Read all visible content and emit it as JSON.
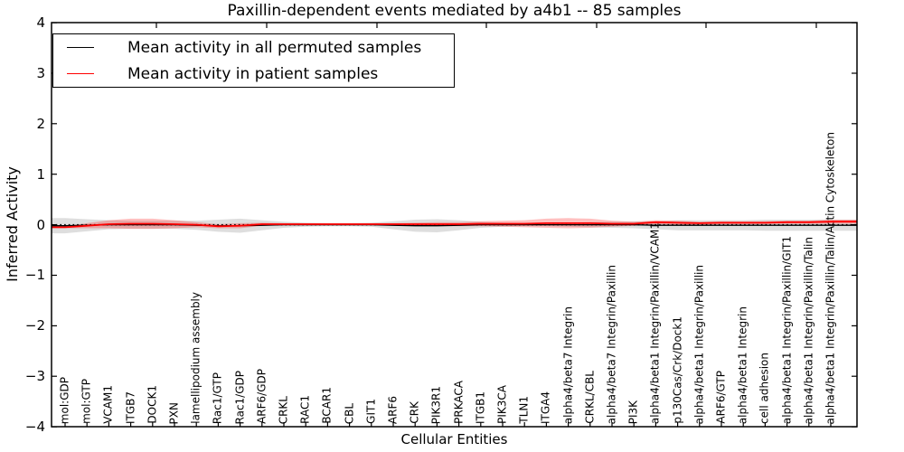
{
  "chart_data": {
    "type": "line",
    "title": "Paxillin-dependent events mediated by a4b1 -- 85 samples",
    "xlabel": "Cellular Entities",
    "ylabel": "Inferred Activity",
    "ylim": [
      -4,
      4
    ],
    "yticks": [
      -4,
      -3,
      -2,
      -1,
      0,
      1,
      2,
      3,
      4
    ],
    "grid": false,
    "legend_position": "upper left",
    "zero_line": {
      "style": "dotted",
      "color": "#000000"
    },
    "categories": [
      "mol:GDP",
      "mol:GTP",
      "VCAM1",
      "ITGB7",
      "DOCK1",
      "PXN",
      "lamellipodium assembly",
      "Rac1/GTP",
      "Rac1/GDP",
      "ARF6/GDP",
      "CRKL",
      "RAC1",
      "BCAR1",
      "CBL",
      "GIT1",
      "ARF6",
      "CRK",
      "PIK3R1",
      "PRKACA",
      "ITGB1",
      "PIK3CA",
      "TLN1",
      "ITGA4",
      "alpha4/beta7 Integrin",
      "CRKL/CBL",
      "alpha4/beta7 Integrin/Paxillin",
      "PI3K",
      "alpha4/beta1 Integrin/Paxillin/VCAM1",
      "p130Cas/Crk/Dock1",
      "alpha4/beta1 Integrin/Paxillin",
      "ARF6/GTP",
      "alpha4/beta1 Integrin",
      "cell adhesion",
      "alpha4/beta1 Integrin/Paxillin/GIT1",
      "alpha4/beta1 Integrin/Paxillin/Talin",
      "alpha4/beta1 Integrin/Paxillin/Talin/Actin Cytoskeleton"
    ],
    "series": [
      {
        "key": "permuted",
        "name": "Mean activity in all permuted samples",
        "color": "#000000",
        "band_color": "rgba(0,0,0,0.13)",
        "line_width": 1.3,
        "values": [
          -0.02,
          -0.01,
          0,
          0,
          0,
          0,
          -0.01,
          -0.02,
          -0.02,
          -0.01,
          0,
          0,
          0,
          0,
          0,
          -0.01,
          -0.02,
          -0.02,
          -0.01,
          0,
          0,
          0,
          0,
          0,
          0,
          0,
          0,
          -0.01,
          -0.01,
          -0.01,
          -0.01,
          -0.01,
          -0.01,
          -0.01,
          -0.01,
          -0.01
        ],
        "std": [
          0.15,
          0.12,
          0.09,
          0.08,
          0.08,
          0.08,
          0.09,
          0.12,
          0.14,
          0.1,
          0.06,
          0.04,
          0.03,
          0.03,
          0.04,
          0.08,
          0.12,
          0.13,
          0.1,
          0.06,
          0.04,
          0.03,
          0.03,
          0.04,
          0.05,
          0.06,
          0.07,
          0.08,
          0.1,
          0.1,
          0.1,
          0.1,
          0.11,
          0.11,
          0.11,
          0.11
        ]
      },
      {
        "key": "patient",
        "name": "Mean activity in patient samples",
        "color": "#ff0000",
        "band_color": "rgba(255,0,0,0.25)",
        "line_width": 1.8,
        "values": [
          -0.05,
          -0.02,
          0.01,
          0.02,
          0.02,
          0.01,
          0,
          -0.03,
          -0.02,
          0.01,
          0.01,
          0.01,
          0.01,
          0.01,
          0.01,
          0.01,
          0.01,
          0.01,
          0.01,
          0.02,
          0.02,
          0.02,
          0.03,
          0.03,
          0.03,
          0.02,
          0.02,
          0.05,
          0.04,
          0.03,
          0.04,
          0.04,
          0.04,
          0.05,
          0.05,
          0.06
        ],
        "std": [
          0.02,
          0.05,
          0.08,
          0.1,
          0.1,
          0.08,
          0.05,
          0.04,
          0.05,
          0.03,
          0.02,
          0.02,
          0.02,
          0.02,
          0.02,
          0.02,
          0.03,
          0.04,
          0.04,
          0.05,
          0.06,
          0.07,
          0.09,
          0.1,
          0.09,
          0.06,
          0.04,
          0.04,
          0.04,
          0.03,
          0.03,
          0.03,
          0.03,
          0.03,
          0.03,
          0.04
        ]
      }
    ]
  },
  "legend": {
    "items": [
      {
        "label": "Mean activity in all permuted samples",
        "color": "#000000"
      },
      {
        "label": "Mean activity in patient samples",
        "color": "#ff0000"
      }
    ]
  }
}
